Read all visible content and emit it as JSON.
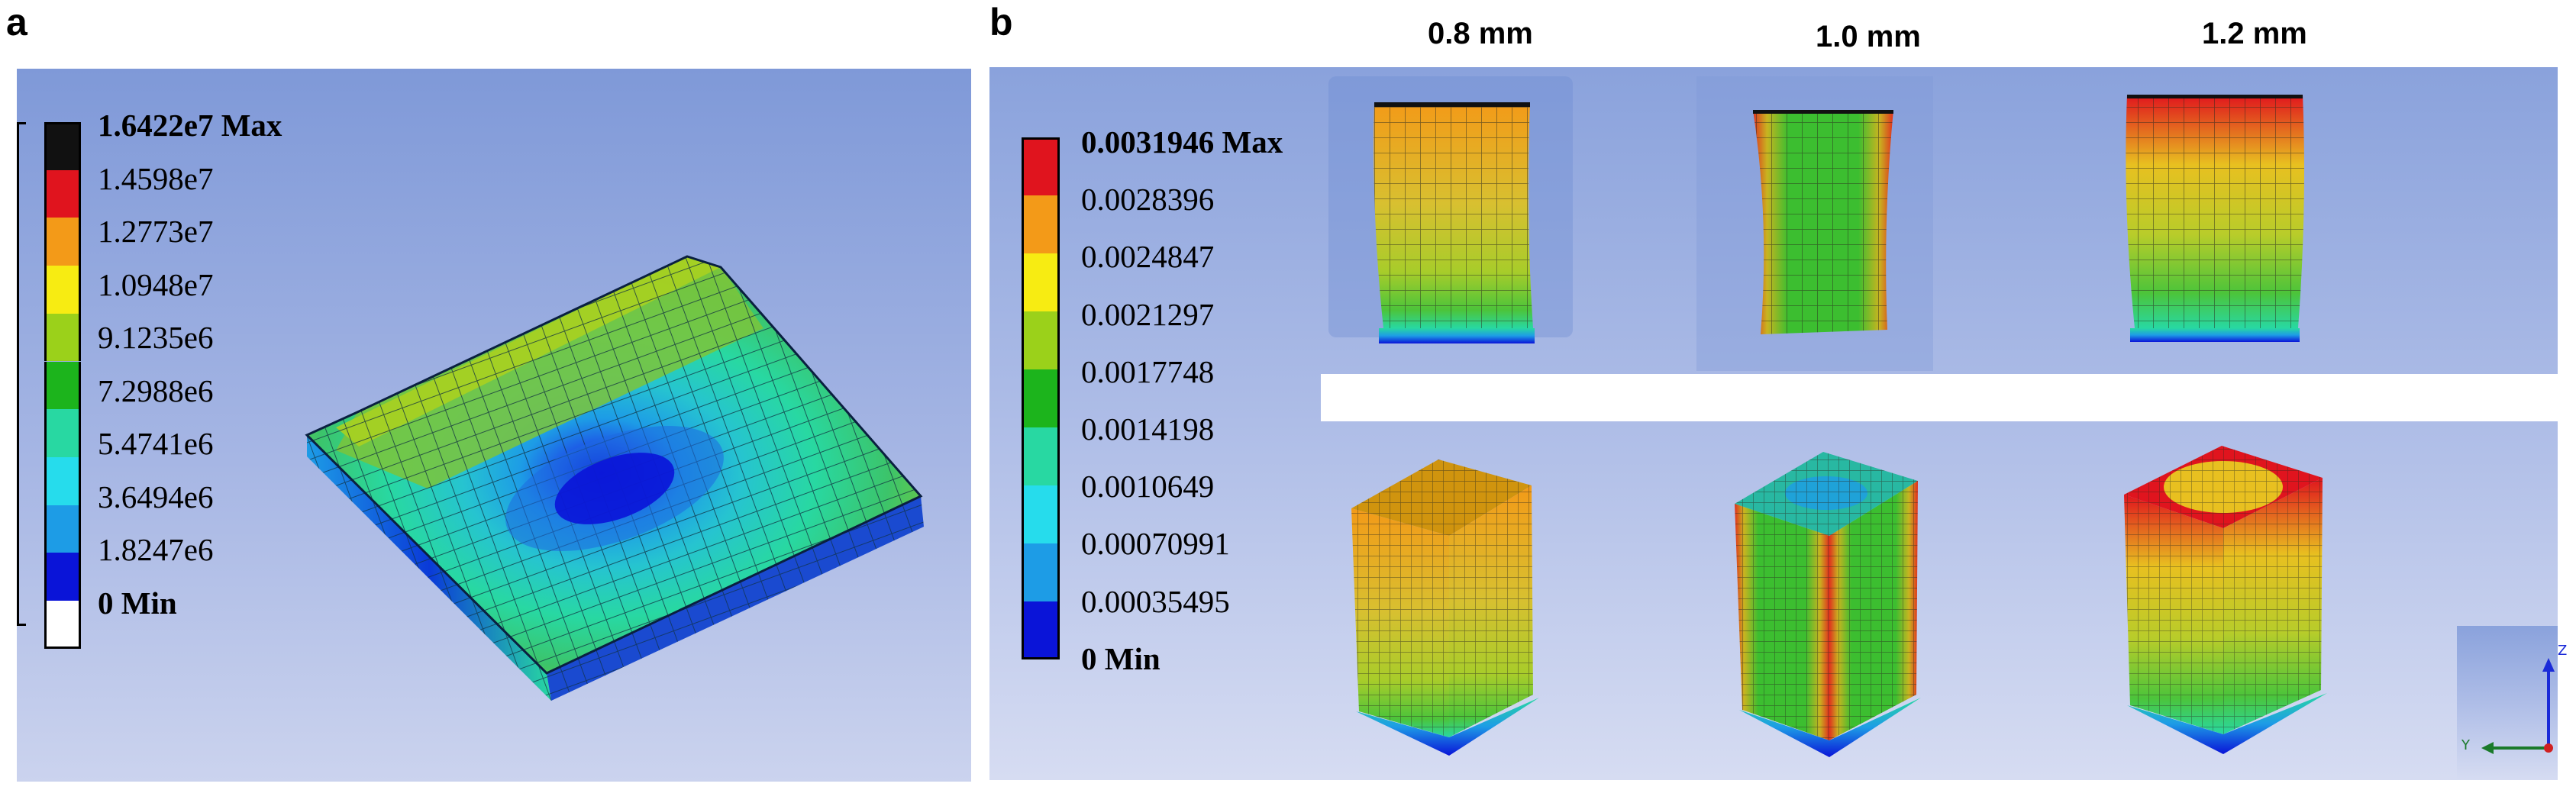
{
  "panel_a": {
    "letter": "a",
    "legend": {
      "labels": [
        "1.6422e7 Max",
        "1.4598e7",
        "1.2773e7",
        "1.0948e7",
        "9.1235e6",
        "7.2988e6",
        "5.4741e6",
        "3.6494e6",
        "1.8247e6",
        "0 Min"
      ],
      "colors": [
        "#111111",
        "#e0141e",
        "#f39a18",
        "#f7ec12",
        "#9bd11a",
        "#1cb41c",
        "#28d8a2",
        "#26dcec",
        "#1d9ce6",
        "#0a14d8",
        "#ffffff"
      ]
    }
  },
  "panel_b": {
    "letter": "b",
    "thicknesses": [
      "0.8 mm",
      "1.0 mm",
      "1.2 mm"
    ],
    "legend": {
      "labels": [
        "0.0031946 Max",
        "0.0028396",
        "0.0024847",
        "0.0021297",
        "0.0017748",
        "0.0014198",
        "0.0010649",
        "0.00070991",
        "0.00035495",
        "0 Min"
      ],
      "colors": [
        "#e0141e",
        "#f39a18",
        "#f7ec12",
        "#9bd11a",
        "#1cb41c",
        "#28d8a2",
        "#26dcec",
        "#1d9ce6",
        "#0a14d8"
      ]
    },
    "triad": {
      "z_label": "Z",
      "y_label": "Y"
    }
  }
}
